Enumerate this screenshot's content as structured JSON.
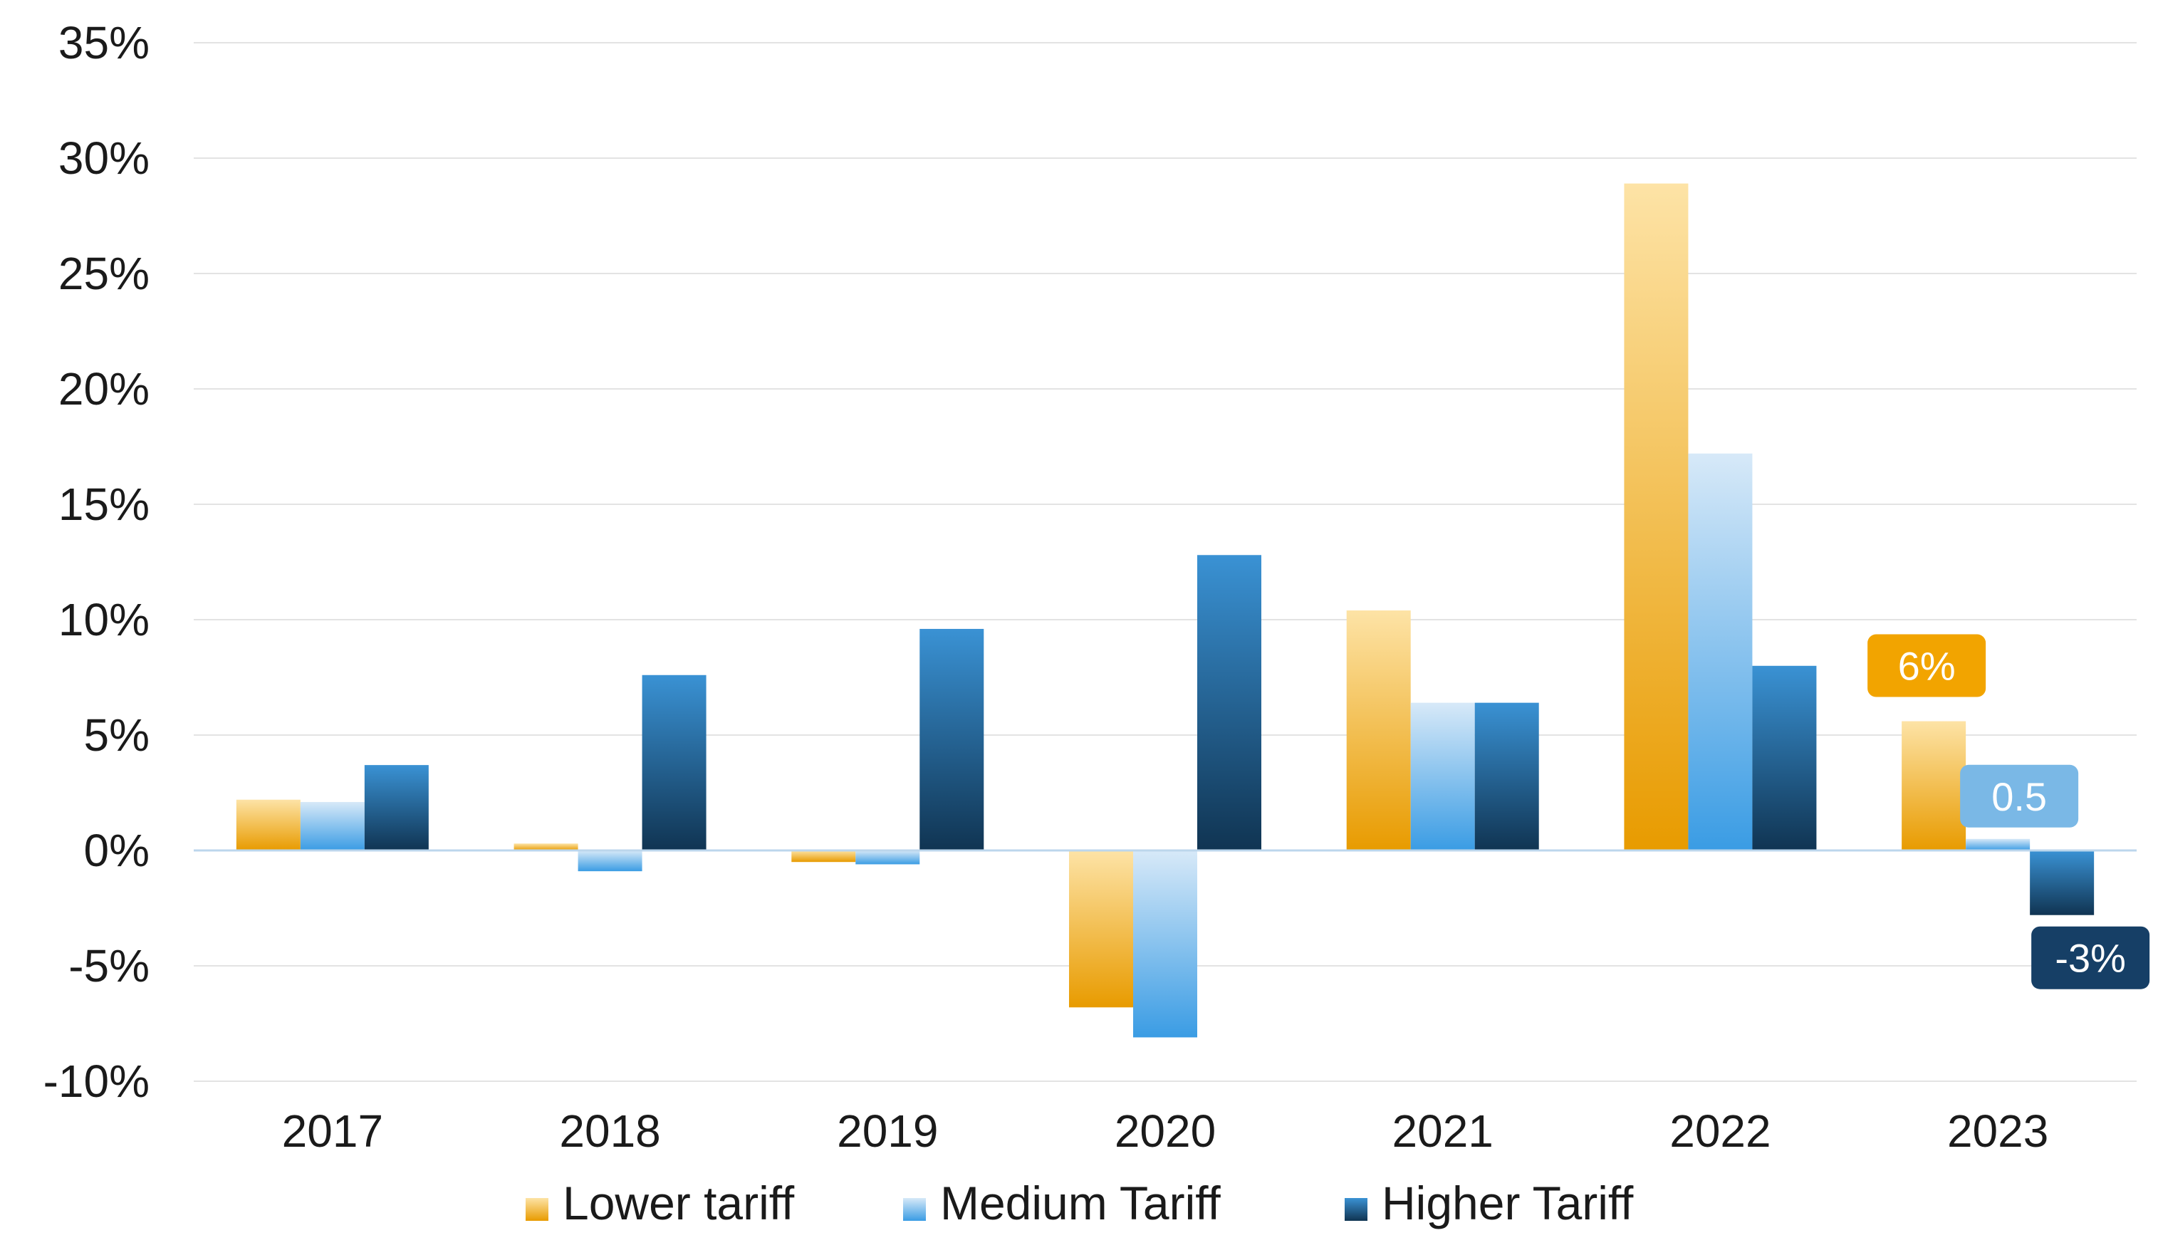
{
  "chart_data": {
    "type": "bar",
    "categories": [
      "2017",
      "2018",
      "2019",
      "2020",
      "2021",
      "2022",
      "2023"
    ],
    "series": [
      {
        "name": "Lower tariff",
        "values": [
          2.2,
          0.3,
          -0.5,
          -6.8,
          10.4,
          28.9,
          5.6
        ],
        "color_top": "#fde3a6",
        "color_bottom": "#e89b00"
      },
      {
        "name": "Medium Tariff",
        "values": [
          2.1,
          -0.9,
          -0.6,
          -8.1,
          6.4,
          17.2,
          0.5
        ],
        "color_top": "#d7e9f8",
        "color_bottom": "#3a9ce4"
      },
      {
        "name": "Higher Tariff",
        "values": [
          3.7,
          7.6,
          9.6,
          12.8,
          6.4,
          8.0,
          -2.8
        ],
        "color_top": "#3a92d4",
        "color_bottom": "#103452"
      }
    ],
    "y_ticks": [
      -10,
      -5,
      0,
      5,
      10,
      15,
      20,
      25,
      30,
      35
    ],
    "y_tick_labels": [
      "-10%",
      "-5%",
      "0%",
      "5%",
      "10%",
      "15%",
      "20%",
      "25%",
      "30%",
      "35%"
    ],
    "ylim": [
      -10,
      35
    ],
    "xlabel": "",
    "ylabel": "",
    "grid": true,
    "legend_position": "bottom",
    "annotations": [
      {
        "category": "2023",
        "series": "Lower tariff",
        "text": "6%",
        "color": "#f2a400"
      },
      {
        "category": "2023",
        "series": "Medium Tariff",
        "text": "0.5",
        "color": "#7ab8e6"
      },
      {
        "category": "2023",
        "series": "Higher Tariff",
        "text": "-3%",
        "color": "#163f66"
      }
    ]
  }
}
